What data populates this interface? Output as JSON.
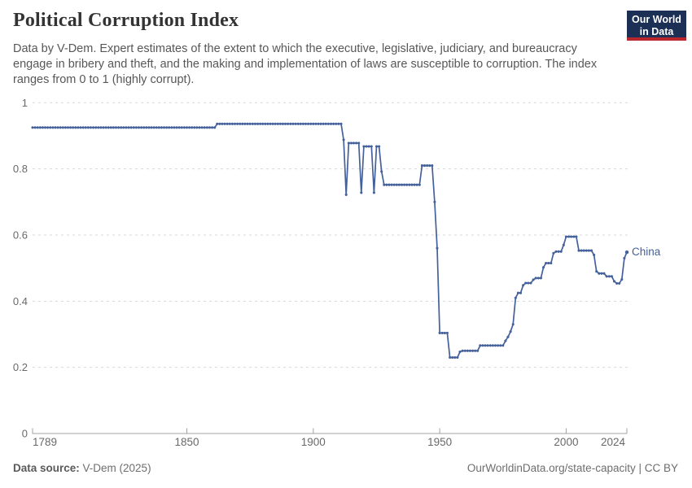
{
  "header": {
    "title": "Political Corruption Index",
    "subtitle": "Data by V-Dem. Expert estimates of the extent to which the executive, legislative, judiciary, and bureaucracy engage in bribery and theft, and the making and implementation of laws are susceptible to corruption. The index ranges from 0 to 1 (highly corrupt).",
    "logo_line1": "Our World",
    "logo_line2": "in Data",
    "logo_bg_color": "#1b3054",
    "logo_stripe_color": "#b9272c"
  },
  "chart_data": {
    "type": "line",
    "title": "Political Corruption Index",
    "xlabel": "",
    "ylabel": "",
    "x_range": [
      1789,
      2024
    ],
    "y_range": [
      0,
      1
    ],
    "x_ticks": [
      1789,
      1850,
      1900,
      1950,
      2000,
      2024
    ],
    "x_tick_labels": [
      "1789",
      "1850",
      "1900",
      "1950",
      "2000",
      "2024"
    ],
    "y_ticks": [
      0,
      0.2,
      0.4,
      0.6,
      0.8,
      1
    ],
    "y_tick_labels": [
      "0",
      "0.2",
      "0.4",
      "0.6",
      "0.8",
      "1"
    ],
    "grid": "horizontal-dashed",
    "gridline_color": "#d8d8d8",
    "axis_color": "#a3a3a3",
    "tick_label_color": "#696969",
    "legend_position": "end-of-line",
    "end_label": "China",
    "series": [
      {
        "name": "China",
        "color": "#44619b",
        "points_note": "vertices [year,value]; yearly dots interpolate linearly between vertices",
        "points": [
          [
            1789,
            0.925
          ],
          [
            1861,
            0.925
          ],
          [
            1862,
            0.936
          ],
          [
            1911,
            0.936
          ],
          [
            1912,
            0.888
          ],
          [
            1913,
            0.722
          ],
          [
            1914,
            0.878
          ],
          [
            1918,
            0.878
          ],
          [
            1919,
            0.728
          ],
          [
            1920,
            0.868
          ],
          [
            1923,
            0.868
          ],
          [
            1924,
            0.728
          ],
          [
            1925,
            0.868
          ],
          [
            1926,
            0.868
          ],
          [
            1927,
            0.792
          ],
          [
            1928,
            0.752
          ],
          [
            1942,
            0.752
          ],
          [
            1943,
            0.81
          ],
          [
            1947,
            0.81
          ],
          [
            1948,
            0.7
          ],
          [
            1949,
            0.56
          ],
          [
            1950,
            0.304
          ],
          [
            1953,
            0.304
          ],
          [
            1954,
            0.23
          ],
          [
            1957,
            0.23
          ],
          [
            1958,
            0.247
          ],
          [
            1959,
            0.25
          ],
          [
            1965,
            0.25
          ],
          [
            1966,
            0.266
          ],
          [
            1975,
            0.266
          ],
          [
            1976,
            0.28
          ],
          [
            1977,
            0.292
          ],
          [
            1978,
            0.308
          ],
          [
            1979,
            0.33
          ],
          [
            1980,
            0.41
          ],
          [
            1981,
            0.425
          ],
          [
            1982,
            0.425
          ],
          [
            1983,
            0.448
          ],
          [
            1984,
            0.455
          ],
          [
            1986,
            0.455
          ],
          [
            1987,
            0.465
          ],
          [
            1988,
            0.47
          ],
          [
            1990,
            0.47
          ],
          [
            1991,
            0.502
          ],
          [
            1992,
            0.515
          ],
          [
            1994,
            0.515
          ],
          [
            1995,
            0.545
          ],
          [
            1996,
            0.55
          ],
          [
            1998,
            0.55
          ],
          [
            1999,
            0.57
          ],
          [
            2000,
            0.595
          ],
          [
            2004,
            0.595
          ],
          [
            2005,
            0.553
          ],
          [
            2010,
            0.553
          ],
          [
            2011,
            0.54
          ],
          [
            2012,
            0.49
          ],
          [
            2013,
            0.484
          ],
          [
            2015,
            0.484
          ],
          [
            2016,
            0.475
          ],
          [
            2018,
            0.475
          ],
          [
            2019,
            0.46
          ],
          [
            2020,
            0.454
          ],
          [
            2021,
            0.454
          ],
          [
            2022,
            0.466
          ],
          [
            2023,
            0.53
          ],
          [
            2024,
            0.548
          ]
        ]
      }
    ]
  },
  "footer": {
    "source_label": "Data source:",
    "source_value": " V-Dem (2025)",
    "rights_url": "OurWorldinData.org/state-capacity",
    "rights_sep": " | ",
    "rights_license": "CC BY"
  }
}
